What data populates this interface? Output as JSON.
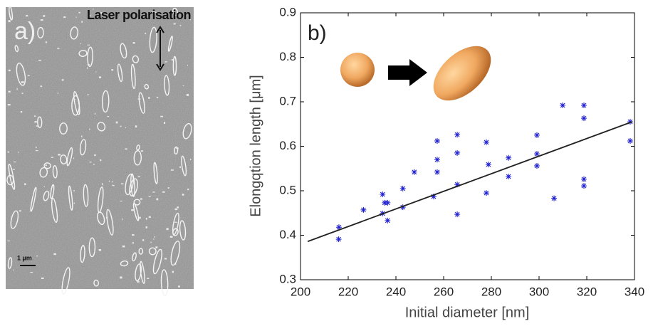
{
  "panel_a": {
    "label": "a)",
    "annotation": "Laser polarisation",
    "scale_bar": "1 µm"
  },
  "chart_data": {
    "type": "scatter",
    "annotation": "b)",
    "xlabel": "Initial diameter [nm]",
    "ylabel": "Elongqtion length  [μm]",
    "xlim": [
      200,
      340
    ],
    "xticks": [
      200,
      220,
      240,
      260,
      280,
      300,
      320,
      340
    ],
    "ylim": [
      0.3,
      0.9
    ],
    "yticks": [
      0.3,
      0.4,
      0.5,
      0.6,
      0.7,
      0.8,
      0.9
    ],
    "grid": false,
    "series": [
      {
        "mode": "markers",
        "color": "#1f1fd0",
        "x": [
          216.1,
          216.0,
          226.4,
          234.4,
          235.3,
          234.4,
          236.5,
          236.5,
          242.9,
          242.9,
          247.7,
          255.8,
          257.3,
          257.3,
          257.3,
          265.7,
          265.7,
          265.7,
          265.7,
          277.9,
          277.9,
          278.8,
          287.2,
          287.2,
          299.1,
          299.1,
          299.1,
          306.3,
          309.9,
          318.8,
          318.8,
          318.8,
          318.8,
          338.2,
          338.2
        ],
        "values": [
          0.418,
          0.391,
          0.457,
          0.492,
          0.473,
          0.449,
          0.433,
          0.473,
          0.505,
          0.463,
          0.542,
          0.487,
          0.612,
          0.57,
          0.542,
          0.626,
          0.585,
          0.514,
          0.447,
          0.609,
          0.495,
          0.559,
          0.574,
          0.532,
          0.625,
          0.583,
          0.556,
          0.483,
          0.692,
          0.692,
          0.663,
          0.526,
          0.511,
          0.655,
          0.612
        ]
      },
      {
        "mode": "line",
        "color": "#222222",
        "x": [
          203,
          339
        ],
        "values": [
          0.386,
          0.655
        ]
      }
    ]
  }
}
